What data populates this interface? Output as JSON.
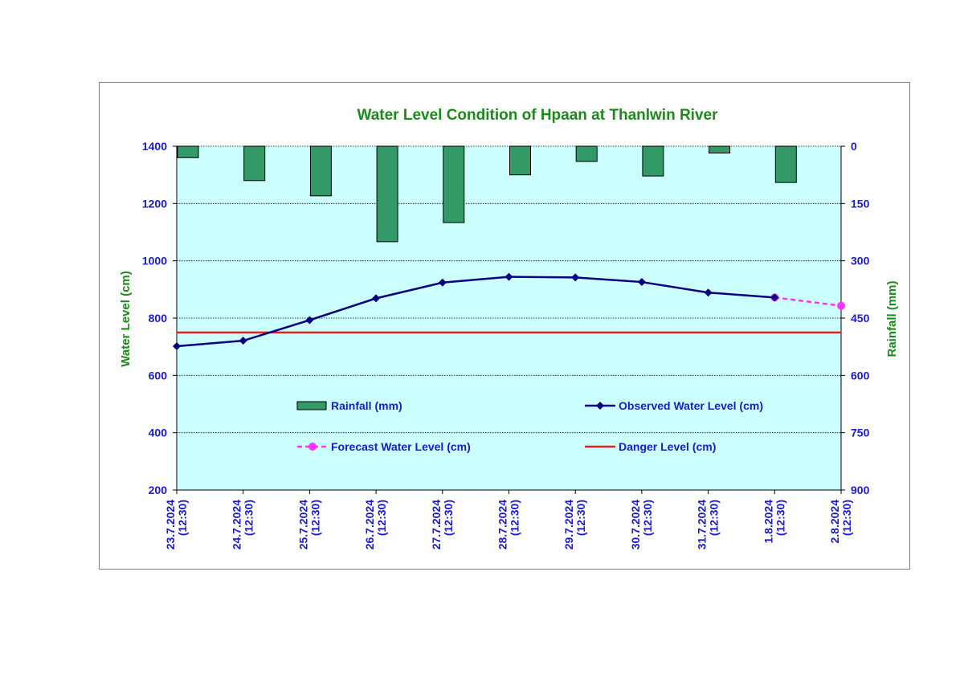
{
  "chart_data": {
    "type": "bar",
    "title": "Water Level Condition of Hpaan at Thanlwin River",
    "ylabel": "Water Level (cm)",
    "y2label": "Rainfall (mm)",
    "ylim": [
      200,
      1400
    ],
    "y2lim": [
      0,
      900
    ],
    "y2_inverted": true,
    "yticks": [
      200,
      400,
      600,
      800,
      1000,
      1200,
      1400
    ],
    "y2ticks": [
      0,
      150,
      300,
      450,
      600,
      750,
      900
    ],
    "grid": true,
    "plot_background": "#ccffff",
    "categories": [
      [
        "23.7.2024",
        "(12:30)"
      ],
      [
        "24.7.2024",
        "(12:30)"
      ],
      [
        "25.7.2024",
        "(12:30)"
      ],
      [
        "26.7.2024",
        "(12:30)"
      ],
      [
        "27.7.2024",
        "(12:30)"
      ],
      [
        "28.7.2024",
        "(12:30)"
      ],
      [
        "29.7.2024",
        "(12:30)"
      ],
      [
        "30.7.2024",
        "(12:30)"
      ],
      [
        "31.7.2024",
        "(12:30)"
      ],
      [
        "1.8.2024",
        "(12:30)"
      ],
      [
        "2.8.2024",
        "(12:30)"
      ]
    ],
    "series": [
      {
        "name": "Rainfall (mm)",
        "type": "bar",
        "axis": "right",
        "color": "#339966",
        "values": [
          30,
          90,
          130,
          250,
          200,
          75,
          40,
          78,
          18,
          95,
          null
        ]
      },
      {
        "name": "Observed Water Level (cm)",
        "type": "line",
        "axis": "left",
        "color": "#000080",
        "marker": "diamond",
        "values": [
          702,
          721,
          793,
          869,
          924,
          944,
          942,
          926,
          889,
          872,
          null
        ]
      },
      {
        "name": "Forecast Water Level (cm)",
        "type": "line",
        "axis": "left",
        "color": "#ff33ff",
        "marker": "circle",
        "dashed": true,
        "values": [
          null,
          null,
          null,
          null,
          null,
          null,
          null,
          null,
          null,
          872,
          843
        ]
      },
      {
        "name": "Danger Level (cm)",
        "type": "line",
        "axis": "left",
        "color": "#e8231f",
        "values": [
          750,
          750,
          750,
          750,
          750,
          750,
          750,
          750,
          750,
          750,
          750
        ]
      }
    ],
    "legend_position": "inside-bottom"
  }
}
